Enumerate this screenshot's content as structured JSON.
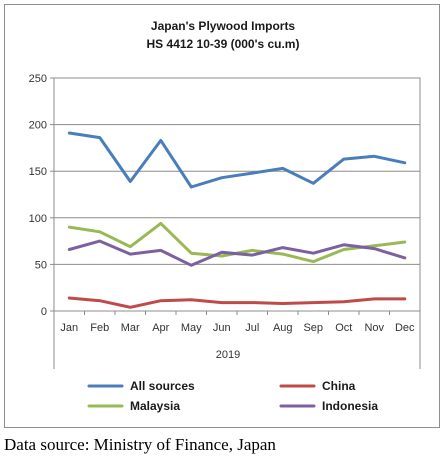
{
  "source_note": "Data source: Ministry of Finance, Japan",
  "chart_data": {
    "type": "line",
    "title": "Japan's Plywood Imports",
    "subtitle": "HS 4412 10-39  (000's cu.m)",
    "xlabel": "2019",
    "ylabel": "",
    "categories": [
      "Jan",
      "Feb",
      "Mar",
      "Apr",
      "May",
      "Jun",
      "Jul",
      "Aug",
      "Sep",
      "Oct",
      "Nov",
      "Dec"
    ],
    "ylim": [
      0,
      250
    ],
    "yticks": [
      0,
      50,
      100,
      150,
      200,
      250
    ],
    "grid": true,
    "plot_background": "#ffffff",
    "legend_position": "bottom",
    "series": [
      {
        "name": "All sources",
        "color": "#4a7ebb",
        "values": [
          191,
          186,
          139,
          183,
          133,
          143,
          148,
          153,
          137,
          163,
          166,
          159
        ]
      },
      {
        "name": "China",
        "color": "#be4b48",
        "values": [
          14,
          11,
          4,
          11,
          12,
          9,
          9,
          8,
          9,
          10,
          13,
          13
        ]
      },
      {
        "name": "Malaysia",
        "color": "#98b954",
        "values": [
          90,
          85,
          69,
          94,
          62,
          59,
          65,
          61,
          53,
          66,
          70,
          74
        ]
      },
      {
        "name": "Indonesia",
        "color": "#7d60a0",
        "values": [
          66,
          75,
          61,
          65,
          49,
          63,
          60,
          68,
          62,
          71,
          67,
          57
        ]
      }
    ]
  }
}
